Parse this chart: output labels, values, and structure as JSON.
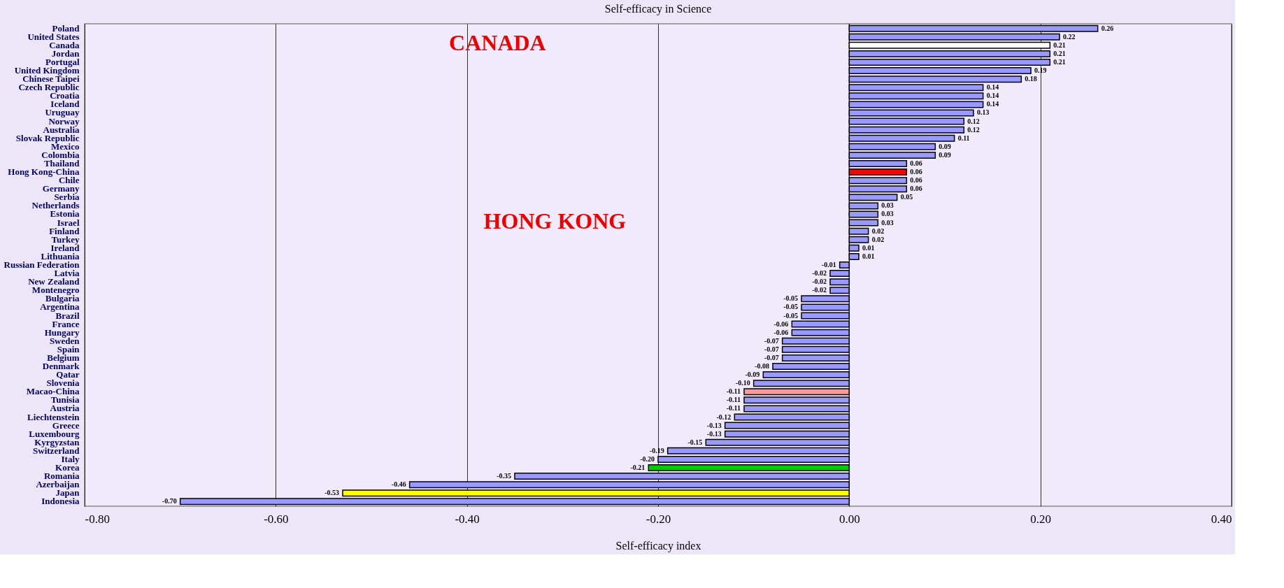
{
  "chart_data": {
    "type": "bar",
    "orientation": "horizontal",
    "title": "Self-efficacy in Science",
    "xlabel": "Self-efficacy index",
    "categories": [
      "Poland",
      "United States",
      "Canada",
      "Jordan",
      "Portugal",
      "United Kingdom",
      "Chinese Taipei",
      "Czech Republic",
      "Croatia",
      "Iceland",
      "Uruguay",
      "Norway",
      "Australia",
      "Slovak Republic",
      "Mexico",
      "Colombia",
      "Thailand",
      "Hong Kong-China",
      "Chile",
      "Germany",
      "Serbia",
      "Netherlands",
      "Estonia",
      "Israel",
      "Finland",
      "Turkey",
      "Ireland",
      "Lithuania",
      "Russian Federation",
      "Latvia",
      "New Zealand",
      "Montenegro",
      "Bulgaria",
      "Argentina",
      "Brazil",
      "France",
      "Hungary",
      "Sweden",
      "Spain",
      "Belgium",
      "Denmark",
      "Qatar",
      "Slovenia",
      "Macao-China",
      "Tunisia",
      "Austria",
      "Liechtenstein",
      "Greece",
      "Luxembourg",
      "Kyrgyzstan",
      "Switzerland",
      "Italy",
      "Korea",
      "Romania",
      "Azerbaijan",
      "Japan",
      "Indonesia"
    ],
    "values": [
      0.26,
      0.22,
      0.21,
      0.21,
      0.21,
      0.19,
      0.18,
      0.14,
      0.14,
      0.14,
      0.13,
      0.12,
      0.12,
      0.11,
      0.09,
      0.09,
      0.06,
      0.06,
      0.06,
      0.06,
      0.05,
      0.03,
      0.03,
      0.03,
      0.02,
      0.02,
      0.01,
      0.01,
      -0.01,
      -0.02,
      -0.02,
      -0.02,
      -0.05,
      -0.05,
      -0.05,
      -0.06,
      -0.06,
      -0.07,
      -0.07,
      -0.07,
      -0.08,
      -0.09,
      -0.1,
      -0.11,
      -0.11,
      -0.11,
      -0.12,
      -0.13,
      -0.13,
      -0.15,
      -0.19,
      -0.2,
      -0.21,
      -0.35,
      -0.46,
      -0.53,
      -0.7
    ],
    "colors": [
      "#9999ff",
      "#9999ff",
      "#ffffff",
      "#9999ff",
      "#9999ff",
      "#9999ff",
      "#9999ff",
      "#9999ff",
      "#9999ff",
      "#9999ff",
      "#9999ff",
      "#9999ff",
      "#9999ff",
      "#9999ff",
      "#9999ff",
      "#9999ff",
      "#9999ff",
      "#ff0000",
      "#9999ff",
      "#9999ff",
      "#9999ff",
      "#9999ff",
      "#9999ff",
      "#9999ff",
      "#9999ff",
      "#9999ff",
      "#9999ff",
      "#9999ff",
      "#9999ff",
      "#9999ff",
      "#9999ff",
      "#9999ff",
      "#9999ff",
      "#9999ff",
      "#9999ff",
      "#9999ff",
      "#9999ff",
      "#9999ff",
      "#9999ff",
      "#9999ff",
      "#9999ff",
      "#9999ff",
      "#9999ff",
      "#ff9999",
      "#9999ff",
      "#9999ff",
      "#9999ff",
      "#9999ff",
      "#9999ff",
      "#9999ff",
      "#9999ff",
      "#9999ff",
      "#00cc00",
      "#9999ff",
      "#9999ff",
      "#ffff00",
      "#9999ff"
    ],
    "xlim": [
      -0.8,
      0.4
    ],
    "xticks": [
      {
        "value": -0.8,
        "label": "-0.80"
      },
      {
        "value": -0.6,
        "label": "-0.60"
      },
      {
        "value": -0.4,
        "label": "-0.40"
      },
      {
        "value": -0.2,
        "label": "-0.20"
      },
      {
        "value": 0,
        "label": "0.00"
      },
      {
        "value": 0.2,
        "label": "0.20"
      },
      {
        "value": 0.4,
        "label": "0.40"
      }
    ],
    "grid": "x",
    "value_labels": [
      "0.26",
      "0.22",
      "0.21",
      "0.21",
      "0.21",
      "0.19",
      "0.18",
      "0.14",
      "0.14",
      "0.14",
      "0.13",
      "0.12",
      "0.12",
      "0.11",
      "0.09",
      "0.09",
      "0.06",
      "0.06",
      "0.06",
      "0.06",
      "0.05",
      "0.03",
      "0.03",
      "0.03",
      "0.02",
      "0.02",
      "0.01",
      "0.01",
      "-0.01",
      "-0.02",
      "-0.02",
      "-0.02",
      "-0.05",
      "-0.05",
      "-0.05",
      "-0.06",
      "-0.06",
      "-0.07",
      "-0.07",
      "-0.07",
      "-0.08",
      "-0.09",
      "-0.10",
      "-0.11",
      "-0.11",
      "-0.11",
      "-0.12",
      "-0.13",
      "-0.13",
      "-0.15",
      "-0.19",
      "-0.20",
      "-0.21",
      "-0.35",
      "-0.46",
      "-0.53",
      "-0.70"
    ],
    "annotations": [
      "CANADA",
      "HONG KONG"
    ]
  }
}
